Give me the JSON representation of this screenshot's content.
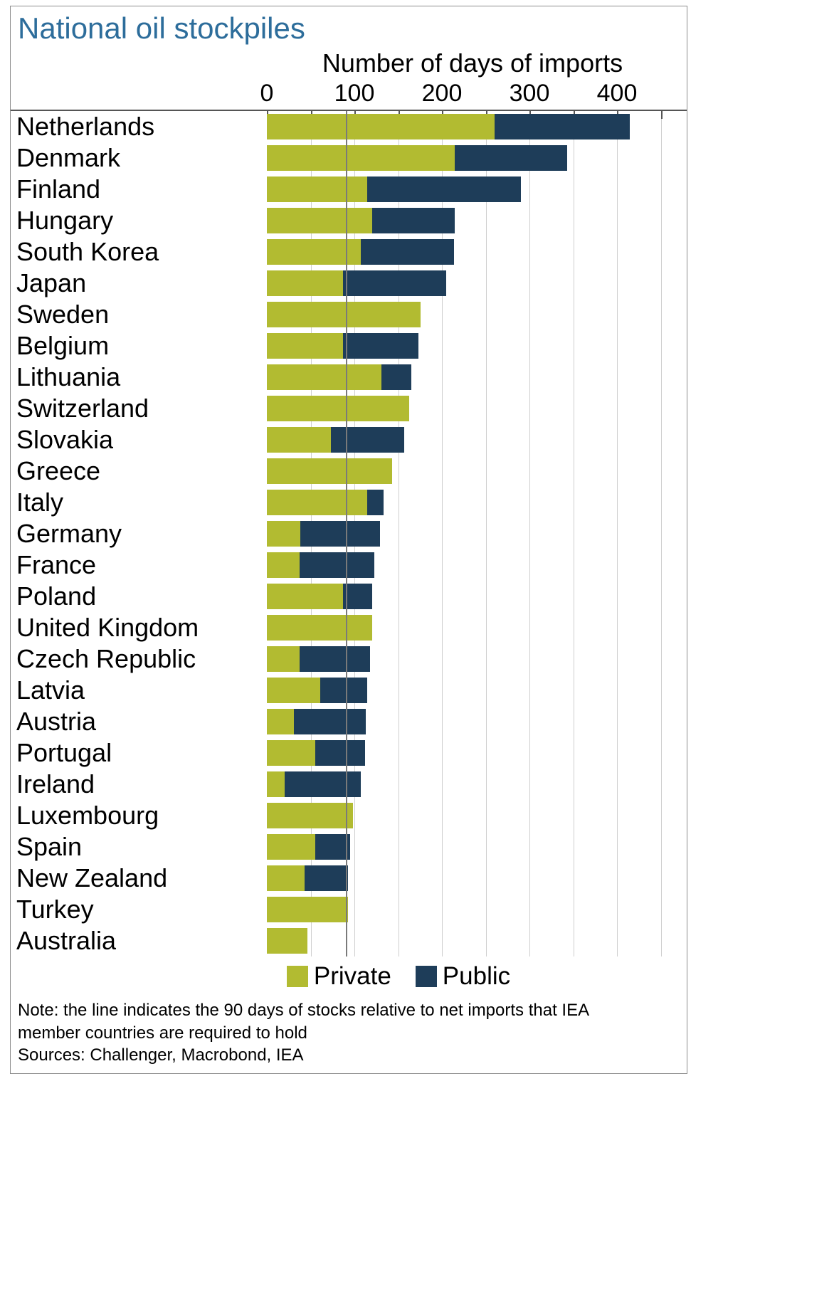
{
  "chart": {
    "title": "National oil stockpiles",
    "axis_title": "Number of days of imports",
    "legend": {
      "private": "Private",
      "public": "Public"
    },
    "note_line1": "Note: the line indicates the 90 days of stocks relative to net imports that IEA",
    "note_line2": "member countries are required to hold",
    "note_line3": "Sources: Challenger, Macrobond, IEA"
  },
  "colors": {
    "private": "#b2bb31",
    "public": "#1e3d59",
    "title": "#2d6d9b",
    "reference_line": "#7a7a7a",
    "gridline": "#cfcfcf",
    "border": "#8c8c8c"
  },
  "chart_data": {
    "type": "bar",
    "orientation": "horizontal",
    "stacked": true,
    "title": "National oil stockpiles",
    "xlabel": "Number of days of imports",
    "xlim": [
      0,
      460
    ],
    "x_ticks": [
      0,
      100,
      200,
      300,
      400
    ],
    "minor_tick_step": 50,
    "grid": true,
    "legend_position": "bottom",
    "reference_line": {
      "value": 90
    },
    "categories": [
      "Netherlands",
      "Denmark",
      "Finland",
      "Hungary",
      "South Korea",
      "Japan",
      "Sweden",
      "Belgium",
      "Lithuania",
      "Switzerland",
      "Slovakia",
      "Greece",
      "Italy",
      "Germany",
      "France",
      "Poland",
      "United Kingdom",
      "Czech Republic",
      "Latvia",
      "Austria",
      "Portugal",
      "Ireland",
      "Luxembourg",
      "Spain",
      "New Zealand",
      "Turkey",
      "Australia"
    ],
    "series": [
      {
        "name": "Private",
        "color": "#b2bb31",
        "values": [
          260,
          215,
          115,
          120,
          107,
          87,
          176,
          87,
          131,
          163,
          73,
          143,
          115,
          38,
          37,
          87,
          120,
          37,
          61,
          31,
          55,
          20,
          98,
          55,
          43,
          93,
          46
        ]
      },
      {
        "name": "Public",
        "color": "#1e3d59",
        "values": [
          155,
          128,
          175,
          95,
          107,
          118,
          0,
          86,
          34,
          0,
          84,
          0,
          18,
          91,
          86,
          33,
          0,
          81,
          54,
          82,
          57,
          87,
          0,
          40,
          50,
          0,
          0
        ]
      }
    ]
  }
}
